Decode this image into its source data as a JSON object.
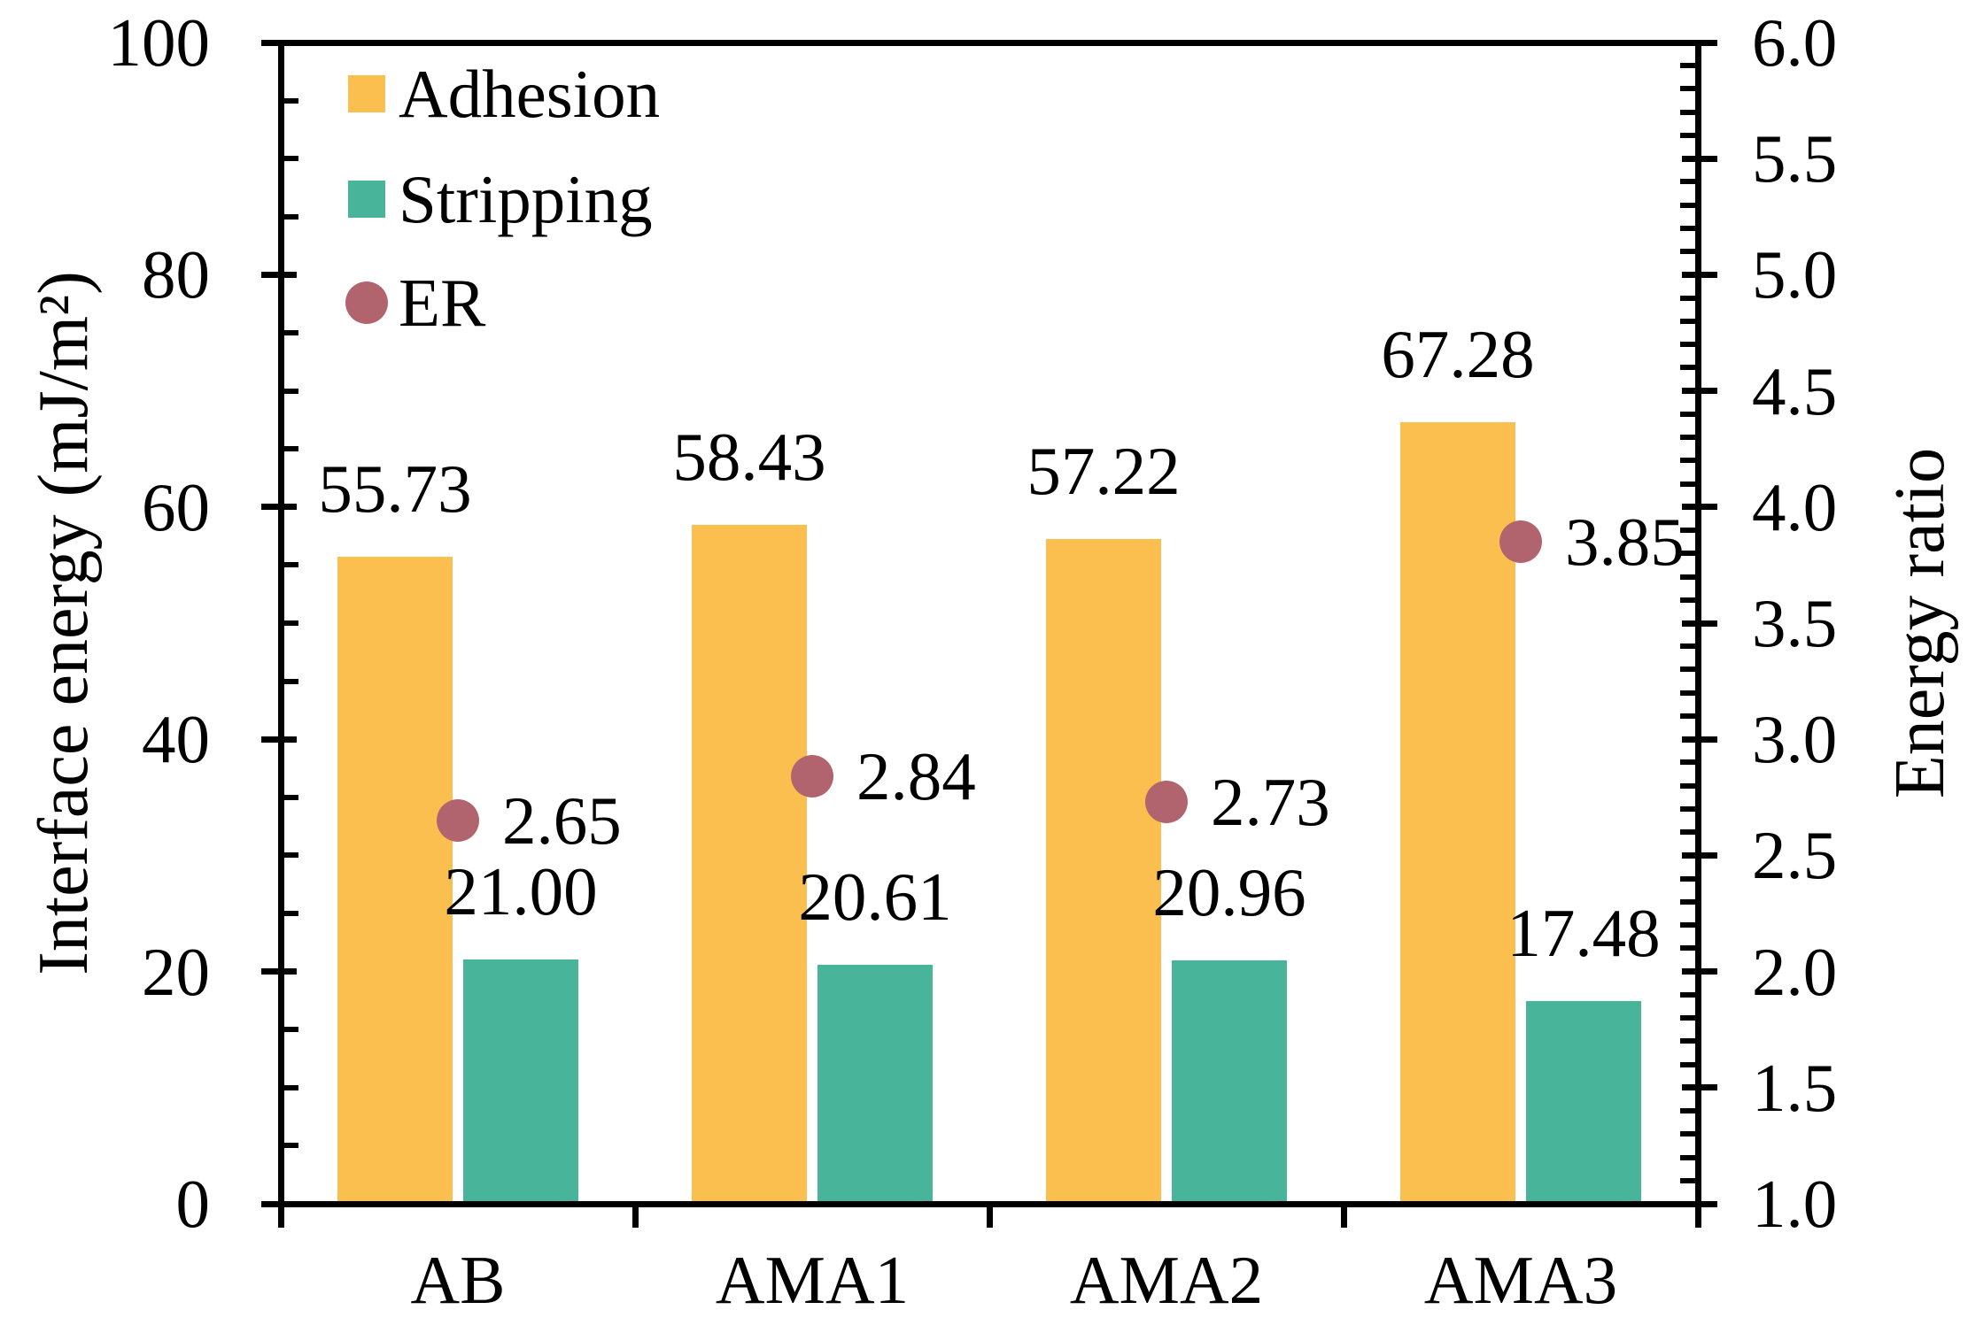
{
  "chart_data": {
    "type": "bar",
    "title": "",
    "categories": [
      "AB",
      "AMA1",
      "AMA2",
      "AMA3"
    ],
    "series": [
      {
        "name": "Adhesion",
        "type": "bar",
        "axis": "left",
        "color": "#FBBF50",
        "values": [
          55.73,
          58.43,
          57.22,
          67.28
        ],
        "labels": [
          "55.73",
          "58.43",
          "57.22",
          "67.28"
        ]
      },
      {
        "name": "Stripping",
        "type": "bar",
        "axis": "left",
        "color": "#48B499",
        "values": [
          21.0,
          20.61,
          20.96,
          17.48
        ],
        "labels": [
          "21.00",
          "20.61",
          "20.96",
          "17.48"
        ]
      },
      {
        "name": "ER",
        "type": "scatter",
        "axis": "right",
        "color": "#B2646E",
        "values": [
          2.65,
          2.84,
          2.73,
          3.85
        ],
        "labels": [
          "2.65",
          "2.84",
          "2.73",
          "3.85"
        ]
      }
    ],
    "left_axis": {
      "title": "Interface energy (mJ/m²)",
      "min": 0,
      "max": 100,
      "major_step": 20,
      "minor_step": 5,
      "tick_labels": [
        "0",
        "20",
        "40",
        "60",
        "80",
        "100"
      ]
    },
    "right_axis": {
      "title": "Energy ratio",
      "min": 1.0,
      "max": 6.0,
      "major_step": 0.5,
      "minor_step": 0.1,
      "tick_labels": [
        "1.0",
        "1.5",
        "2.0",
        "2.5",
        "3.0",
        "3.5",
        "4.0",
        "4.5",
        "5.0",
        "5.5",
        "6.0"
      ]
    },
    "legend": {
      "position": "top-left-inside",
      "entries": [
        {
          "label": "Adhesion",
          "marker": "square",
          "color": "#FBBF50"
        },
        {
          "label": "Stripping",
          "marker": "square",
          "color": "#48B499"
        },
        {
          "label": "ER",
          "marker": "circle",
          "color": "#B2646E"
        }
      ]
    },
    "grid": false,
    "axis_color": "#000000",
    "text_color": "#000000",
    "background": "#ffffff"
  }
}
